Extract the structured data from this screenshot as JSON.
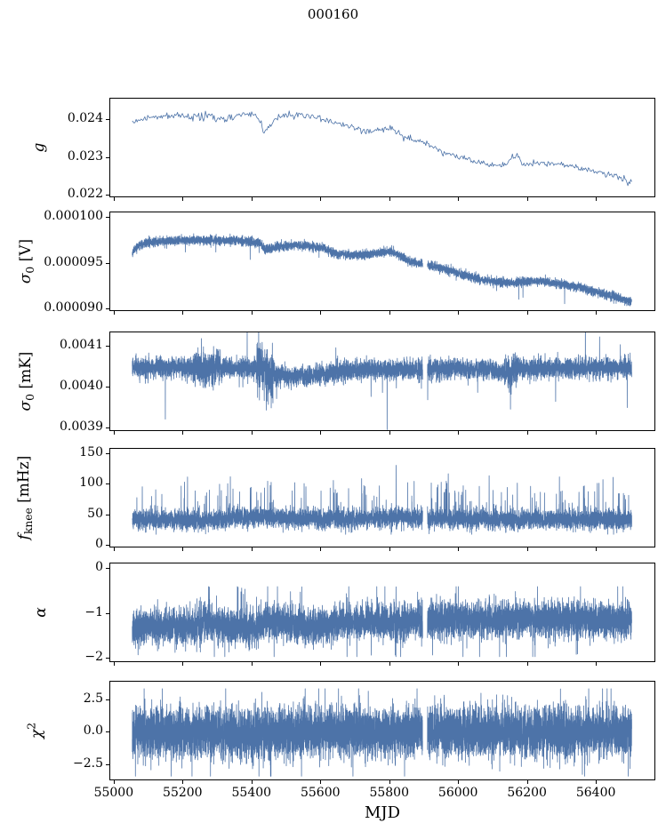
{
  "title": "000160",
  "chart_data": {
    "type": "line",
    "title": "000160",
    "xlabel": "MJD",
    "xlim": [
      54990,
      56570
    ],
    "x_data_range": [
      55054,
      56504
    ],
    "x_ticks": [
      {
        "v": 55000,
        "l": "55000"
      },
      {
        "v": 55200,
        "l": "55200"
      },
      {
        "v": 55400,
        "l": "55400"
      },
      {
        "v": 55600,
        "l": "55600"
      },
      {
        "v": 55800,
        "l": "55800"
      },
      {
        "v": 56000,
        "l": "56000"
      },
      {
        "v": 56200,
        "l": "56200"
      },
      {
        "v": 56400,
        "l": "56400"
      }
    ],
    "line_color": "#4d73a8",
    "axis_color": "#000000",
    "data_gap_mjd": [
      55897,
      55911
    ],
    "legend": "none",
    "grid": false,
    "panels": [
      {
        "id": "g",
        "ylabel": [
          {
            "t": "g",
            "s": "i"
          }
        ],
        "ylim": [
          0.02195,
          0.02455
        ],
        "yticks": [
          {
            "v": 0.022,
            "l": "0.022"
          },
          {
            "v": 0.023,
            "l": "0.023"
          },
          {
            "v": 0.024,
            "l": "0.024"
          }
        ],
        "series": {
          "n": 520,
          "noise": 4.2e-05,
          "seed": 11,
          "gap": false,
          "trend": [
            [
              55054,
              0.02392
            ],
            [
              55080,
              0.024
            ],
            [
              55120,
              0.02407
            ],
            [
              55180,
              0.02411
            ],
            [
              55230,
              0.02409
            ],
            [
              55270,
              0.02414
            ],
            [
              55300,
              0.02405
            ],
            [
              55330,
              0.02403
            ],
            [
              55360,
              0.02411
            ],
            [
              55400,
              0.02414
            ],
            [
              55420,
              0.02408
            ],
            [
              55436,
              0.02366
            ],
            [
              55455,
              0.02382
            ],
            [
              55475,
              0.02402
            ],
            [
              55500,
              0.02412
            ],
            [
              55540,
              0.02411
            ],
            [
              55575,
              0.02409
            ],
            [
              55610,
              0.02398
            ],
            [
              55650,
              0.0239
            ],
            [
              55690,
              0.0238
            ],
            [
              55730,
              0.02366
            ],
            [
              55760,
              0.0237
            ],
            [
              55790,
              0.02377
            ],
            [
              55815,
              0.02372
            ],
            [
              55840,
              0.02353
            ],
            [
              55870,
              0.02346
            ],
            [
              55900,
              0.0234
            ],
            [
              55940,
              0.02318
            ],
            [
              55970,
              0.0231
            ],
            [
              56000,
              0.023
            ],
            [
              56045,
              0.02289
            ],
            [
              56095,
              0.0228
            ],
            [
              56140,
              0.02278
            ],
            [
              56172,
              0.0231
            ],
            [
              56185,
              0.02279
            ],
            [
              56230,
              0.02283
            ],
            [
              56280,
              0.02282
            ],
            [
              56330,
              0.02277
            ],
            [
              56370,
              0.02268
            ],
            [
              56410,
              0.0226
            ],
            [
              56450,
              0.0225
            ],
            [
              56480,
              0.02242
            ],
            [
              56494,
              0.02224
            ],
            [
              56504,
              0.02242
            ]
          ],
          "var_regions": [
            [
              55225,
              55300,
              2.0
            ],
            [
              55320,
              55350,
              1.8
            ]
          ]
        }
      },
      {
        "id": "sigma0_V",
        "ylabel": [
          {
            "t": "σ",
            "s": "i"
          },
          {
            "t": "0",
            "s": "sub"
          },
          {
            "t": " [V]",
            "s": "n"
          }
        ],
        "ylim": [
          8.98e-05,
          0.0001005
        ],
        "yticks": [
          {
            "v": 9e-05,
            "l": "0.000090"
          },
          {
            "v": 9.5e-05,
            "l": "0.000095"
          },
          {
            "v": 0.0001,
            "l": "0.000100"
          }
        ],
        "series": {
          "n": 7000,
          "noise": 2.4e-07,
          "seed": 22,
          "gap": true,
          "trend": [
            [
              55054,
              9.62e-05
            ],
            [
              55070,
              9.68e-05
            ],
            [
              55100,
              9.72e-05
            ],
            [
              55150,
              9.74e-05
            ],
            [
              55250,
              9.75e-05
            ],
            [
              55350,
              9.74e-05
            ],
            [
              55425,
              9.72e-05
            ],
            [
              55438,
              9.64e-05
            ],
            [
              55470,
              9.67e-05
            ],
            [
              55520,
              9.69e-05
            ],
            [
              55570,
              9.68e-05
            ],
            [
              55612,
              9.66e-05
            ],
            [
              55640,
              9.6e-05
            ],
            [
              55700,
              9.58e-05
            ],
            [
              55760,
              9.6e-05
            ],
            [
              55800,
              9.62e-05
            ],
            [
              55830,
              9.58e-05
            ],
            [
              55860,
              9.51e-05
            ],
            [
              55910,
              9.48e-05
            ],
            [
              55960,
              9.43e-05
            ],
            [
              56010,
              9.37e-05
            ],
            [
              56060,
              9.32e-05
            ],
            [
              56110,
              9.29e-05
            ],
            [
              56160,
              9.28e-05
            ],
            [
              56210,
              9.3e-05
            ],
            [
              56260,
              9.29e-05
            ],
            [
              56310,
              9.26e-05
            ],
            [
              56360,
              9.22e-05
            ],
            [
              56410,
              9.17e-05
            ],
            [
              56460,
              9.12e-05
            ],
            [
              56504,
              9.07e-05
            ]
          ],
          "neg_tail": {
            "p": 0.0012,
            "min": 8e-07,
            "max": 2.4e-06
          }
        }
      },
      {
        "id": "sigma0_mK",
        "ylabel": [
          {
            "t": "σ",
            "s": "i"
          },
          {
            "t": "0",
            "s": "sub"
          },
          {
            "t": " [mK]",
            "s": "n"
          }
        ],
        "ylim": [
          0.003894,
          0.004132
        ],
        "yticks": [
          {
            "v": 0.0039,
            "l": "0.0039"
          },
          {
            "v": 0.004,
            "l": "0.0040"
          },
          {
            "v": 0.0041,
            "l": "0.0041"
          }
        ],
        "series": {
          "n": 7000,
          "noise": 1.2e-05,
          "seed": 33,
          "gap": true,
          "trend": [
            [
              55054,
              0.004046
            ],
            [
              55150,
              0.004046
            ],
            [
              55230,
              0.004044
            ],
            [
              55310,
              0.004046
            ],
            [
              55420,
              0.004044
            ],
            [
              55440,
              0.00404
            ],
            [
              55470,
              0.004028
            ],
            [
              55560,
              0.004026
            ],
            [
              55620,
              0.004032
            ],
            [
              55680,
              0.00404
            ],
            [
              55800,
              0.004042
            ],
            [
              55900,
              0.004042
            ],
            [
              56000,
              0.004043
            ],
            [
              56100,
              0.004042
            ],
            [
              56148,
              0.004032
            ],
            [
              56160,
              0.004044
            ],
            [
              56300,
              0.004044
            ],
            [
              56400,
              0.004046
            ],
            [
              56504,
              0.004045
            ]
          ],
          "var_regions": [
            [
              55230,
              55310,
              1.7
            ],
            [
              55415,
              55465,
              2.4
            ],
            [
              56130,
              56175,
              1.6
            ]
          ],
          "tail": {
            "p": 0.006,
            "f": 2.3
          },
          "neg_tail": {
            "p": 0.0015,
            "min": 3.5e-05,
            "max": 6e-05
          },
          "named": [
            [
              56152,
              0.003945
            ],
            [
              55437,
              0.003966
            ],
            [
              55431,
              0.004108
            ]
          ]
        }
      },
      {
        "id": "fknee",
        "ylabel": [
          {
            "t": "f",
            "s": "i"
          },
          {
            "t": "knee",
            "s": "sub"
          },
          {
            "t": " [mHz]",
            "s": "n"
          }
        ],
        "ylim": [
          -3,
          157
        ],
        "yticks": [
          {
            "v": 0,
            "l": "0"
          },
          {
            "v": 50,
            "l": "50"
          },
          {
            "v": 100,
            "l": "100"
          },
          {
            "v": 150,
            "l": "150"
          }
        ],
        "series": {
          "n": 7000,
          "noise": 8,
          "seed": 44,
          "gap": true,
          "trend": [
            [
              55054,
              42
            ],
            [
              55250,
              40
            ],
            [
              55430,
              46
            ],
            [
              55500,
              43
            ],
            [
              55700,
              42
            ],
            [
              55820,
              44
            ],
            [
              56000,
              42
            ],
            [
              56200,
              41
            ],
            [
              56504,
              40
            ]
          ],
          "pos_spikes": {
            "p": 0.016,
            "min": 22,
            "max": 62
          },
          "clamp": [
            17,
            152
          ],
          "named": [
            [
              55820,
              130
            ],
            [
              56090,
              113
            ],
            [
              55447,
              104
            ],
            [
              55331,
              100
            ],
            [
              56172,
              101
            ],
            [
              55196,
              96
            ],
            [
              55122,
              90
            ],
            [
              55558,
              95
            ],
            [
              55682,
              92
            ],
            [
              55905,
              90
            ],
            [
              56302,
              88
            ],
            [
              56351,
              86
            ],
            [
              56480,
              84
            ],
            [
              55602,
              88
            ],
            [
              55649,
              85
            ],
            [
              56012,
              86
            ],
            [
              56222,
              84
            ]
          ]
        }
      },
      {
        "id": "alpha",
        "ylabel": [
          {
            "t": "α",
            "s": "i"
          }
        ],
        "ylim": [
          -2.07,
          0.09
        ],
        "yticks": [
          {
            "v": -2,
            "l": "−2"
          },
          {
            "v": -1,
            "l": "−1"
          },
          {
            "v": 0,
            "l": "0"
          }
        ],
        "series": {
          "n": 8000,
          "noise": 0.19,
          "seed": 55,
          "gap": true,
          "trend": [
            [
              55054,
              -1.32
            ],
            [
              55230,
              -1.3
            ],
            [
              55260,
              -1.22
            ],
            [
              55340,
              -1.3
            ],
            [
              55420,
              -1.33
            ],
            [
              55445,
              -1.18
            ],
            [
              55520,
              -1.22
            ],
            [
              55560,
              -1.32
            ],
            [
              55620,
              -1.3
            ],
            [
              55660,
              -1.2
            ],
            [
              55750,
              -1.18
            ],
            [
              55800,
              -1.2
            ],
            [
              55900,
              -1.18
            ],
            [
              55910,
              -1.15
            ],
            [
              56000,
              -1.14
            ],
            [
              56100,
              -1.16
            ],
            [
              56200,
              -1.13
            ],
            [
              56300,
              -1.15
            ],
            [
              56400,
              -1.14
            ],
            [
              56504,
              -1.16
            ]
          ],
          "tail": {
            "p": 0.012,
            "f": 2.0
          },
          "clamp": [
            -1.97,
            -0.42
          ]
        }
      },
      {
        "id": "chi2",
        "ylabel": [
          {
            "t": "χ",
            "s": "i"
          },
          {
            "t": "2",
            "s": "sup"
          }
        ],
        "ylim": [
          -3.7,
          3.9
        ],
        "yticks": [
          {
            "v": -2.5,
            "l": "−2.5"
          },
          {
            "v": 0,
            "l": "0.0"
          },
          {
            "v": 2.5,
            "l": "2.5"
          }
        ],
        "series": {
          "n": 9000,
          "noise": 0.92,
          "seed": 66,
          "gap": true,
          "trend": [
            [
              55054,
              0
            ],
            [
              56504,
              0
            ]
          ],
          "tail": {
            "p": 0.012,
            "f": 1.6
          },
          "clamp": [
            -3.45,
            3.35
          ]
        }
      }
    ]
  }
}
